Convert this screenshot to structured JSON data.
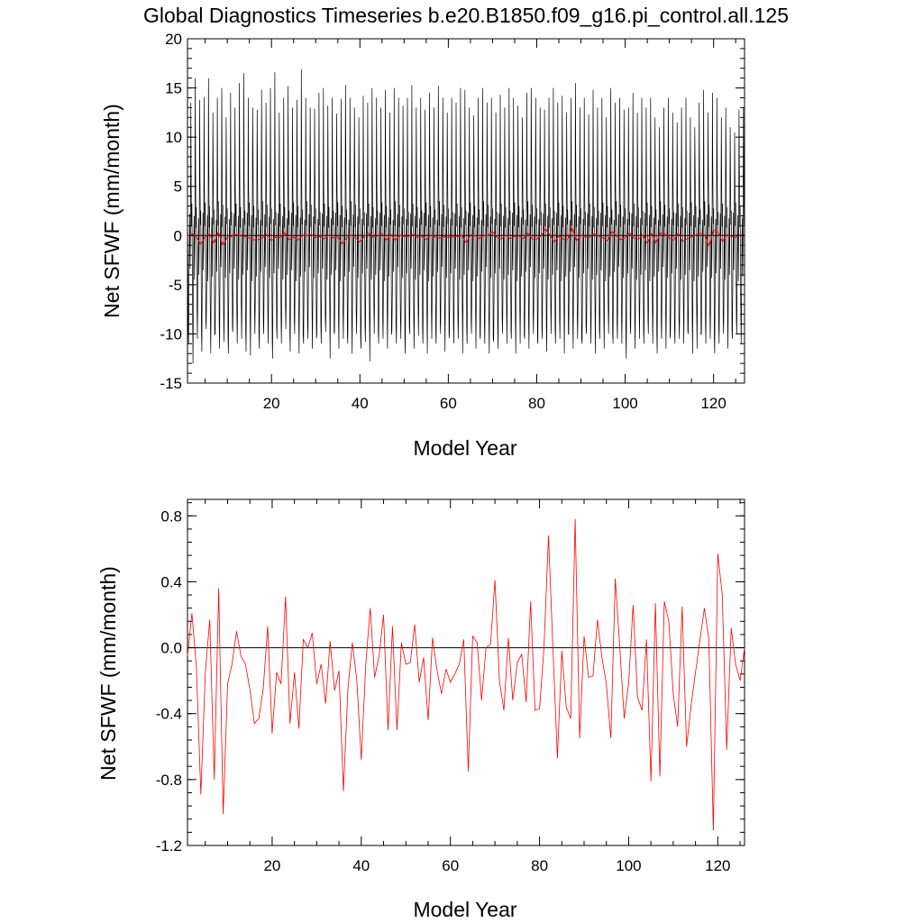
{
  "title": "Global Diagnostics Timeseries b.e20.B1850.f09_g16.pi_control.all.125",
  "chart_data": [
    {
      "type": "line",
      "panel": "monthly",
      "xlabel": "Model Year",
      "ylabel": "Net SFWF (mm/month)",
      "xlim": [
        1,
        127
      ],
      "ylim": [
        -15,
        20
      ],
      "xticks": [
        20,
        40,
        60,
        80,
        100,
        120
      ],
      "xtick_labels": [
        "20",
        "40",
        "60",
        "80",
        "100",
        "120"
      ],
      "yticks": [
        -15,
        -10,
        -5,
        0,
        5,
        10,
        15,
        20
      ],
      "ytick_labels": [
        "-15",
        "-10",
        "-5",
        "0",
        "5",
        "10",
        "15",
        "20"
      ],
      "zero_line": true,
      "series": [
        {
          "color": "#000000",
          "description_only": "monthly values oscillating seasonally",
          "monthly_cycle": [
            3.0,
            -2.5,
            -9.0,
            -11.0,
            -6.0,
            -1.0,
            2.0,
            -4.0,
            0.5,
            14.0,
            6.0,
            1.0
          ],
          "peak_high": [
            13.5,
            16.0,
            13.8,
            14.1,
            16.0,
            12.5,
            14.0,
            15.0,
            12.0,
            14.5,
            13.0,
            15.5,
            16.5,
            14.0,
            13.0,
            12.8,
            14.8,
            13.5,
            15.0,
            16.6,
            12.5,
            14.0,
            15.2,
            13.0,
            13.8,
            16.9,
            14.0,
            13.0,
            12.9,
            14.5,
            15.0,
            13.2,
            14.0,
            12.4,
            13.9,
            15.3,
            14.0,
            13.0,
            12.0,
            14.2,
            13.5,
            15.0,
            14.0,
            13.0,
            14.8,
            12.5,
            15.0,
            14.0,
            13.2,
            14.0,
            15.3,
            13.0,
            14.0,
            12.8,
            14.5,
            13.0,
            15.2,
            14.0,
            12.5,
            14.0,
            13.5,
            15.0,
            14.8,
            13.0,
            12.2,
            14.0,
            15.0,
            13.5,
            14.0,
            12.5,
            14.3,
            13.0,
            15.0,
            14.0,
            13.2,
            12.0,
            14.5,
            15.0,
            14.0,
            13.0,
            12.8,
            14.0,
            15.0,
            13.5,
            14.2,
            12.5,
            14.0,
            15.5,
            13.0,
            14.0,
            12.3,
            14.8,
            13.0,
            14.0,
            12.0,
            15.0,
            13.5,
            14.0,
            12.8,
            13.0,
            14.5,
            12.5,
            14.0,
            13.0,
            14.0,
            12.0,
            11.0,
            13.0,
            14.0,
            12.5,
            11.5,
            13.0,
            14.0,
            12.0,
            11.0,
            13.5,
            14.8,
            12.5,
            14.5,
            14.0,
            12.0,
            13.0,
            11.0,
            10.5,
            12.8,
            13.0,
            12.5
          ],
          "trough_low": [
            -11.0,
            -13.0,
            -10.5,
            -11.8,
            -9.5,
            -12.0,
            -10.0,
            -11.5,
            -10.8,
            -12.0,
            -9.8,
            -11.0,
            -10.5,
            -11.8,
            -12.2,
            -10.0,
            -11.5,
            -10.0,
            -11.0,
            -12.5,
            -10.5,
            -11.0,
            -9.5,
            -11.8,
            -10.0,
            -12.0,
            -11.0,
            -10.5,
            -11.5,
            -10.0,
            -11.0,
            -9.8,
            -12.5,
            -10.0,
            -11.5,
            -10.5,
            -11.0,
            -12.0,
            -10.0,
            -11.5,
            -10.8,
            -12.8,
            -10.0,
            -11.0,
            -10.5,
            -11.5,
            -9.5,
            -11.0,
            -10.5,
            -12.0,
            -10.0,
            -11.5,
            -10.2,
            -11.0,
            -12.0,
            -10.5,
            -11.0,
            -10.0,
            -11.8,
            -9.8,
            -11.0,
            -10.5,
            -12.0,
            -11.0,
            -10.0,
            -11.5,
            -10.5,
            -11.0,
            -12.0,
            -10.8,
            -11.5,
            -10.0,
            -11.0,
            -10.5,
            -12.0,
            -11.0,
            -10.5,
            -11.5,
            -10.0,
            -11.0,
            -10.5,
            -11.8,
            -10.0,
            -11.0,
            -10.5,
            -12.0,
            -10.0,
            -11.5,
            -10.5,
            -11.0,
            -10.0,
            -11.0,
            -12.0,
            -10.5,
            -11.5,
            -10.0,
            -11.0,
            -10.5,
            -11.0,
            -12.5,
            -10.0,
            -11.5,
            -10.5,
            -11.0,
            -10.0,
            -11.0,
            -12.0,
            -10.5,
            -11.5,
            -10.0,
            -11.0,
            -10.5,
            -11.0,
            -10.0,
            -12.0,
            -11.5,
            -10.0,
            -11.0,
            -10.5,
            -12.0,
            -11.0,
            -10.0,
            -11.5,
            -10.5,
            -10.0,
            -11.0,
            -10.5
          ]
        },
        {
          "color": "#ff0000",
          "values_ref": "annual"
        }
      ]
    },
    {
      "type": "line",
      "panel": "annual",
      "xlabel": "Model Year",
      "ylabel": "Net SFWF (mm/month)",
      "xlim": [
        1,
        126
      ],
      "ylim": [
        -1.2,
        0.9
      ],
      "xticks": [
        20,
        40,
        60,
        80,
        100,
        120
      ],
      "xtick_labels": [
        "20",
        "40",
        "60",
        "80",
        "100",
        "120"
      ],
      "yticks": [
        -1.2,
        -0.8,
        -0.4,
        0.0,
        0.4,
        0.8
      ],
      "ytick_labels": [
        "-1.2",
        "-0.8",
        "-0.4",
        "0.0",
        "0.4",
        "0.8"
      ],
      "zero_line": true,
      "color": "#ff0000",
      "x": [
        1,
        2,
        3,
        4,
        5,
        6,
        7,
        8,
        9,
        10,
        11,
        12,
        13,
        14,
        15,
        16,
        17,
        18,
        19,
        20,
        21,
        22,
        23,
        24,
        25,
        26,
        27,
        28,
        29,
        30,
        31,
        32,
        33,
        34,
        35,
        36,
        37,
        38,
        39,
        40,
        41,
        42,
        43,
        44,
        45,
        46,
        47,
        48,
        49,
        50,
        51,
        52,
        53,
        54,
        55,
        56,
        57,
        58,
        59,
        60,
        61,
        62,
        63,
        64,
        65,
        66,
        67,
        68,
        69,
        70,
        71,
        72,
        73,
        74,
        75,
        76,
        77,
        78,
        79,
        80,
        81,
        82,
        83,
        84,
        85,
        86,
        87,
        88,
        89,
        90,
        91,
        92,
        93,
        94,
        95,
        96,
        97,
        98,
        99,
        100,
        101,
        102,
        103,
        104,
        105,
        106,
        107,
        108,
        109,
        110,
        111,
        112,
        113,
        114,
        115,
        116,
        117,
        118,
        119,
        120,
        121,
        122,
        123,
        124,
        125,
        126
      ],
      "values": [
        -0.05,
        0.21,
        -0.12,
        -0.89,
        -0.15,
        0.17,
        -0.8,
        0.36,
        -1.01,
        -0.22,
        -0.1,
        0.1,
        -0.05,
        -0.1,
        -0.25,
        -0.46,
        -0.43,
        -0.25,
        0.13,
        -0.52,
        -0.15,
        -0.22,
        0.31,
        -0.46,
        -0.15,
        -0.49,
        0.05,
        0.0,
        0.09,
        -0.22,
        -0.1,
        -0.34,
        0.04,
        -0.26,
        -0.14,
        -0.87,
        -0.25,
        0.03,
        -0.2,
        -0.68,
        -0.1,
        0.24,
        -0.18,
        -0.05,
        0.2,
        -0.5,
        0.13,
        -0.5,
        0.03,
        -0.1,
        -0.09,
        0.14,
        -0.21,
        -0.06,
        -0.44,
        0.06,
        -0.14,
        -0.28,
        -0.13,
        -0.21,
        -0.16,
        -0.1,
        0.05,
        -0.75,
        0.07,
        0.03,
        -0.32,
        0.0,
        0.02,
        0.41,
        -0.2,
        -0.38,
        0.06,
        -0.32,
        -0.09,
        -0.04,
        -0.33,
        0.28,
        -0.38,
        -0.37,
        0.0,
        0.68,
        0.0,
        -0.67,
        -0.02,
        -0.36,
        -0.43,
        0.78,
        -0.55,
        0.07,
        -0.18,
        -0.17,
        0.17,
        -0.06,
        -0.22,
        -0.55,
        0.42,
        0.0,
        -0.43,
        -0.21,
        0.26,
        -0.3,
        -0.38,
        0.05,
        -0.81,
        0.27,
        -0.78,
        0.28,
        0.16,
        -0.28,
        -0.48,
        0.25,
        -0.6,
        -0.35,
        -0.15,
        0.05,
        0.24,
        0.05,
        -1.11,
        0.57,
        0.32,
        -0.62,
        0.12,
        -0.1,
        -0.2,
        0.0
      ]
    }
  ]
}
